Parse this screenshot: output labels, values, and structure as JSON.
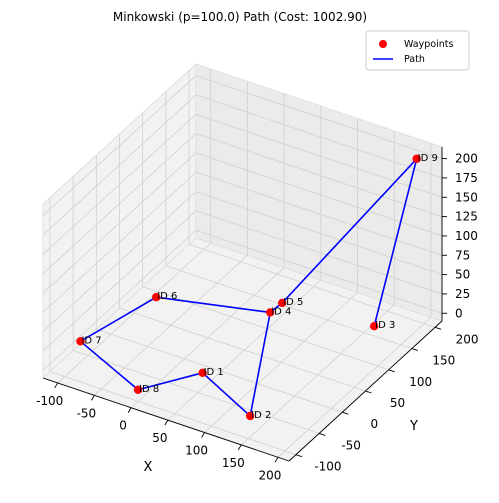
{
  "chart_data": {
    "type": "scatter",
    "projection": "3d",
    "title": "Minkowski (p=100.0) Path (Cost: 1002.90)",
    "xlabel": "X",
    "ylabel": "Y",
    "zlabel": "",
    "xticks": [
      -100,
      -50,
      0,
      50,
      100,
      150,
      200
    ],
    "yticks": [
      -100,
      -50,
      0,
      50,
      100,
      150,
      200
    ],
    "zticks": [
      0,
      25,
      50,
      75,
      100,
      125,
      150,
      175,
      200
    ],
    "xlim": [
      -120,
      215
    ],
    "ylim": [
      -115,
      215
    ],
    "zlim": [
      -10,
      215
    ],
    "grid": true,
    "legend": {
      "placement": "top-right",
      "entries": [
        {
          "label": "Waypoints",
          "color": "#ff0000",
          "marker": "circle"
        },
        {
          "label": "Path",
          "color": "#0000ff",
          "marker": "line"
        }
      ]
    },
    "waypoints": [
      {
        "label": "ID 1",
        "x": 50,
        "y": -40,
        "z": 10
      },
      {
        "label": "ID 2",
        "x": 140,
        "y": -80,
        "z": 5
      },
      {
        "label": "ID 3",
        "x": 170,
        "y": 140,
        "z": 10
      },
      {
        "label": "ID 4",
        "x": 60,
        "y": 90,
        "z": 20
      },
      {
        "label": "ID 5",
        "x": 70,
        "y": 100,
        "z": 30
      },
      {
        "label": "ID 6",
        "x": -70,
        "y": 50,
        "z": 20
      },
      {
        "label": "ID 7",
        "x": -110,
        "y": -50,
        "z": 5
      },
      {
        "label": "ID 8",
        "x": 0,
        "y": -100,
        "z": 5
      },
      {
        "label": "ID 9",
        "x": 190,
        "y": 200,
        "z": 200
      }
    ],
    "path_order": [
      "ID 1",
      "ID 8",
      "ID 7",
      "ID 6",
      "ID 4",
      "ID 2",
      "ID 1"
    ],
    "path_order_2": [
      "ID 4",
      "ID 5",
      "ID 9",
      "ID 3"
    ],
    "colors": {
      "waypoint": "#ff0000",
      "path": "#0000ff"
    }
  }
}
